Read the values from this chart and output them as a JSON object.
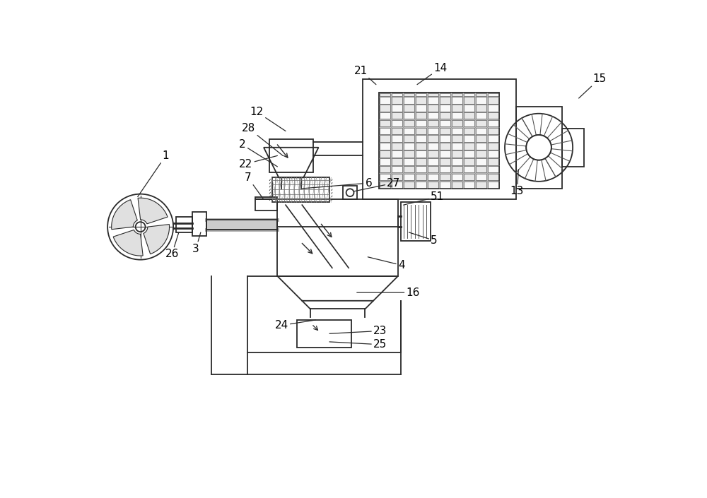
{
  "bg": "#ffffff",
  "lc": "#2a2a2a",
  "lw": 1.3,
  "fs": 11,
  "fig_w": 10.0,
  "fig_h": 7.05,
  "dpi": 100,
  "xlim": [
    0,
    100
  ],
  "ylim": [
    0,
    70
  ]
}
